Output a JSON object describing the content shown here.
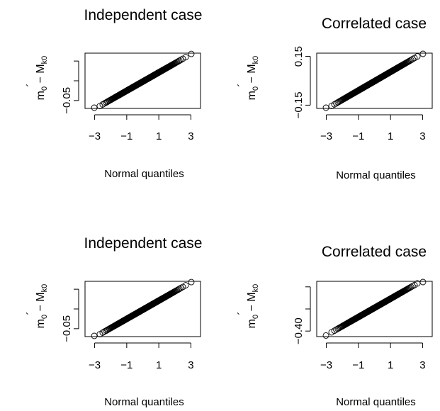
{
  "chart_data": [
    {
      "type": "scatter",
      "title": "Independent case",
      "xlabel": "Normal quantiles",
      "ylabel": {
        "main": "m",
        "sub0": "0",
        "mid": " − ",
        "hat": "M",
        "accent": "´",
        "sub1": "k0"
      },
      "xlim": [
        -3.6,
        3.6
      ],
      "ylim": [
        -0.07,
        0.07
      ],
      "xticks": [
        -3,
        -1,
        1,
        3
      ],
      "xtick_labels": [
        "−3",
        "−1",
        "1",
        "3"
      ],
      "yticks": [
        -0.05,
        0.0,
        0.05
      ],
      "ytick_labels": [
        "−0.05",
        "",
        ""
      ],
      "points": {
        "n": 400,
        "y_min": -0.072,
        "y_max": 0.068
      }
    },
    {
      "type": "scatter",
      "title": "Correlated case",
      "xlabel": "Normal quantiles",
      "ylabel": {
        "main": "m",
        "sub0": "0",
        "mid": " − ",
        "hat": "M",
        "accent": "´",
        "sub1": "k0"
      },
      "xlim": [
        -3.6,
        3.6
      ],
      "ylim": [
        -0.17,
        0.17
      ],
      "xticks": [
        -3,
        -1,
        1,
        3
      ],
      "xtick_labels": [
        "−3",
        "−1",
        "1",
        "3"
      ],
      "yticks": [
        -0.15,
        0.15
      ],
      "ytick_labels": [
        "−0.15",
        "0.15"
      ],
      "points": {
        "n": 400,
        "y_min": -0.175,
        "y_max": 0.17
      }
    },
    {
      "type": "scatter",
      "title": "Independent case",
      "xlabel": "Normal quantiles",
      "ylabel": {
        "main": "m",
        "sub0": "0",
        "mid": " − ",
        "hat": "M",
        "accent": "´",
        "sub1": "k0"
      },
      "xlim": [
        -3.6,
        3.6
      ],
      "ylim": [
        -0.07,
        0.07
      ],
      "xticks": [
        -3,
        -1,
        1,
        3
      ],
      "xtick_labels": [
        "−3",
        "−1",
        "1",
        "3"
      ],
      "yticks": [
        -0.05,
        0.0,
        0.05
      ],
      "ytick_labels": [
        "−0.05",
        "",
        ""
      ],
      "points": {
        "n": 400,
        "y_min": -0.072,
        "y_max": 0.068
      }
    },
    {
      "type": "scatter",
      "title": "Correlated case",
      "xlabel": "Normal quantiles",
      "ylabel": {
        "main": "m",
        "sub0": "0",
        "mid": " − ",
        "hat": "M",
        "accent": "´",
        "sub1": "k0"
      },
      "xlim": [
        -3.6,
        3.6
      ],
      "ylim": [
        -0.5,
        0.5
      ],
      "xticks": [
        -3,
        -1,
        1,
        3
      ],
      "xtick_labels": [
        "−3",
        "−1",
        "1",
        "3"
      ],
      "yticks": [
        -0.4,
        0.0,
        0.4
      ],
      "ytick_labels": [
        "−0.40",
        "",
        ""
      ],
      "points": {
        "n": 400,
        "y_min": -0.48,
        "y_max": 0.52
      }
    }
  ]
}
